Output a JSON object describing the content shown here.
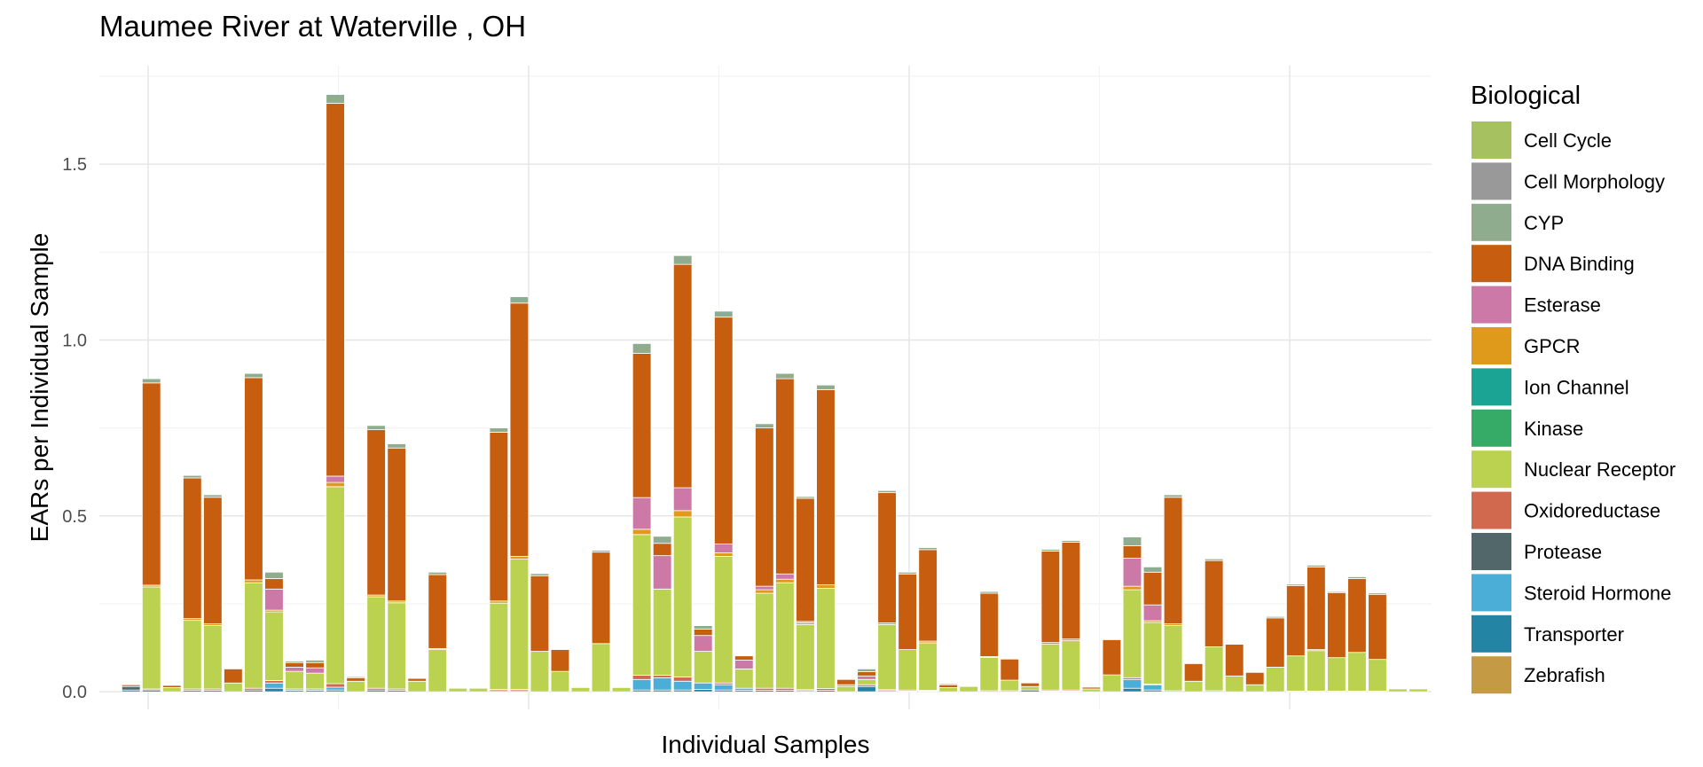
{
  "chart_data": {
    "type": "bar",
    "stacked": true,
    "title": "Maumee River at Waterville , OH",
    "xlabel": "Individual Samples",
    "ylabel": "EARs per Individual Sample",
    "ylim": [
      -0.05,
      1.78
    ],
    "yticks": [
      0.0,
      0.5,
      1.0,
      1.5
    ],
    "ytick_labels": [
      "0.0",
      "0.5",
      "1.0",
      "1.5"
    ],
    "grid": true,
    "legend_position": "right",
    "legend_title": "Biological",
    "series": [
      {
        "name": "Cell Cycle",
        "color": "#A6C15F"
      },
      {
        "name": "Cell Morphology",
        "color": "#999999"
      },
      {
        "name": "CYP",
        "color": "#8FAD8E"
      },
      {
        "name": "DNA Binding",
        "color": "#C75E0F"
      },
      {
        "name": "Esterase",
        "color": "#CC79A7"
      },
      {
        "name": "GPCR",
        "color": "#DF9A1B"
      },
      {
        "name": "Ion Channel",
        "color": "#1BA394"
      },
      {
        "name": "Kinase",
        "color": "#36AB67"
      },
      {
        "name": "Nuclear Receptor",
        "color": "#BAD24F"
      },
      {
        "name": "Oxidoreductase",
        "color": "#D1694E"
      },
      {
        "name": "Protease",
        "color": "#51676A"
      },
      {
        "name": "Steroid Hormone",
        "color": "#4BAED6"
      },
      {
        "name": "Transporter",
        "color": "#2484A3"
      },
      {
        "name": "Zebrafish",
        "color": "#C49A45"
      }
    ],
    "samples": [
      {
        "Protease": 0.01,
        "Transporter": 0.005,
        "Oxidoreductase": 0.005
      },
      {
        "Protease": 0.005,
        "Oxidoreductase": 0.003,
        "Nuclear Receptor": 0.29,
        "GPCR": 0.005,
        "DNA Binding": 0.575,
        "CYP": 0.012
      },
      {
        "Nuclear Receptor": 0.012,
        "DNA Binding": 0.006
      },
      {
        "Protease": 0.004,
        "Oxidoreductase": 0.004,
        "Nuclear Receptor": 0.195,
        "GPCR": 0.005,
        "DNA Binding": 0.4,
        "CYP": 0.007
      },
      {
        "Protease": 0.004,
        "Oxidoreductase": 0.004,
        "Nuclear Receptor": 0.18,
        "GPCR": 0.005,
        "DNA Binding": 0.36,
        "CYP": 0.007
      },
      {
        "Nuclear Receptor": 0.025,
        "DNA Binding": 0.04
      },
      {
        "Protease": 0.005,
        "Oxidoreductase": 0.005,
        "Nuclear Receptor": 0.3,
        "GPCR": 0.008,
        "DNA Binding": 0.575,
        "CYP": 0.012
      },
      {
        "Transporter": 0.01,
        "Steroid Hormone": 0.015,
        "Oxidoreductase": 0.007,
        "Nuclear Receptor": 0.195,
        "GPCR": 0.005,
        "Esterase": 0.06,
        "DNA Binding": 0.03,
        "CYP": 0.018
      },
      {
        "Transporter": 0.004,
        "Steroid Hormone": 0.004,
        "Nuclear Receptor": 0.05,
        "Esterase": 0.012,
        "DNA Binding": 0.013,
        "CYP": 0.004
      },
      {
        "Transporter": 0.004,
        "Steroid Hormone": 0.004,
        "Nuclear Receptor": 0.045,
        "Esterase": 0.015,
        "DNA Binding": 0.015,
        "CYP": 0.007
      },
      {
        "Transporter": 0.005,
        "Steroid Hormone": 0.008,
        "Oxidoreductase": 0.01,
        "Nuclear Receptor": 0.56,
        "GPCR": 0.012,
        "Esterase": 0.018,
        "DNA Binding": 1.06,
        "CYP": 0.025
      },
      {
        "Nuclear Receptor": 0.03,
        "DNA Binding": 0.01,
        "CYP": 0.003
      },
      {
        "Protease": 0.005,
        "Oxidoreductase": 0.005,
        "Nuclear Receptor": 0.26,
        "GPCR": 0.005,
        "DNA Binding": 0.47,
        "CYP": 0.012
      },
      {
        "Protease": 0.004,
        "Oxidoreductase": 0.004,
        "Nuclear Receptor": 0.245,
        "GPCR": 0.005,
        "DNA Binding": 0.435,
        "CYP": 0.012
      },
      {
        "Nuclear Receptor": 0.03,
        "DNA Binding": 0.008,
        "CYP": 0.002
      },
      {
        "Nuclear Receptor": 0.12,
        "GPCR": 0.003,
        "DNA Binding": 0.21,
        "CYP": 0.007
      },
      {
        "Nuclear Receptor": 0.01
      },
      {
        "Nuclear Receptor": 0.01
      },
      {
        "Protease": 0.003,
        "Oxidoreductase": 0.004,
        "Nuclear Receptor": 0.245,
        "GPCR": 0.006,
        "DNA Binding": 0.48,
        "CYP": 0.012
      },
      {
        "Protease": 0.003,
        "Oxidoreductase": 0.004,
        "Nuclear Receptor": 0.37,
        "GPCR": 0.008,
        "DNA Binding": 0.72,
        "CYP": 0.018
      },
      {
        "Nuclear Receptor": 0.115,
        "DNA Binding": 0.215,
        "CYP": 0.006
      },
      {
        "Nuclear Receptor": 0.058,
        "DNA Binding": 0.062
      },
      {
        "Nuclear Receptor": 0.012
      },
      {
        "Nuclear Receptor": 0.137,
        "DNA Binding": 0.26,
        "CYP": 0.005
      },
      {
        "Nuclear Receptor": 0.012
      },
      {
        "Transporter": 0.005,
        "Steroid Hormone": 0.03,
        "Oxidoreductase": 0.012,
        "Nuclear Receptor": 0.4,
        "GPCR": 0.015,
        "Esterase": 0.09,
        "DNA Binding": 0.41,
        "CYP": 0.028
      },
      {
        "Transporter": 0.005,
        "Steroid Hormone": 0.035,
        "Oxidoreductase": 0.007,
        "Nuclear Receptor": 0.245,
        "Esterase": 0.095,
        "DNA Binding": 0.035,
        "CYP": 0.02
      },
      {
        "Transporter": 0.005,
        "Steroid Hormone": 0.025,
        "Oxidoreductase": 0.012,
        "Nuclear Receptor": 0.455,
        "GPCR": 0.018,
        "Esterase": 0.065,
        "DNA Binding": 0.635,
        "CYP": 0.025
      },
      {
        "Transporter": 0.007,
        "Steroid Hormone": 0.018,
        "Nuclear Receptor": 0.09,
        "Esterase": 0.045,
        "DNA Binding": 0.018,
        "CYP": 0.01
      },
      {
        "Transporter": 0.005,
        "Steroid Hormone": 0.015,
        "Oxidoreductase": 0.005,
        "Nuclear Receptor": 0.36,
        "GPCR": 0.01,
        "Esterase": 0.025,
        "DNA Binding": 0.645,
        "CYP": 0.017
      },
      {
        "Transporter": 0.004,
        "Steroid Hormone": 0.006,
        "Nuclear Receptor": 0.055,
        "Esterase": 0.025,
        "DNA Binding": 0.012
      },
      {
        "Protease": 0.004,
        "Oxidoreductase": 0.006,
        "Nuclear Receptor": 0.27,
        "GPCR": 0.01,
        "Esterase": 0.01,
        "DNA Binding": 0.45,
        "CYP": 0.012
      },
      {
        "Protease": 0.004,
        "Oxidoreductase": 0.006,
        "Nuclear Receptor": 0.3,
        "GPCR": 0.01,
        "Esterase": 0.015,
        "DNA Binding": 0.555,
        "CYP": 0.015
      },
      {
        "Protease": 0.003,
        "Oxidoreductase": 0.003,
        "Nuclear Receptor": 0.185,
        "GPCR": 0.005,
        "Esterase": 0.004,
        "DNA Binding": 0.35,
        "CYP": 0.005
      },
      {
        "Protease": 0.004,
        "Oxidoreductase": 0.005,
        "Nuclear Receptor": 0.285,
        "GPCR": 0.01,
        "DNA Binding": 0.555,
        "CYP": 0.013
      },
      {
        "Nuclear Receptor": 0.015,
        "GPCR": 0.005,
        "DNA Binding": 0.015
      },
      {
        "Transporter": 0.015,
        "Oxidoreductase": 0.005,
        "Nuclear Receptor": 0.015,
        "Esterase": 0.01,
        "DNA Binding": 0.012,
        "CYP": 0.008
      },
      {
        "Protease": 0.003,
        "Oxidoreductase": 0.003,
        "Nuclear Receptor": 0.185,
        "GPCR": 0.005,
        "DNA Binding": 0.37,
        "CYP": 0.006
      },
      {
        "Protease": 0.002,
        "Oxidoreductase": 0.003,
        "Nuclear Receptor": 0.115,
        "DNA Binding": 0.215,
        "CYP": 0.005
      },
      {
        "Protease": 0.002,
        "Oxidoreductase": 0.002,
        "Nuclear Receptor": 0.135,
        "GPCR": 0.005,
        "DNA Binding": 0.26,
        "CYP": 0.006
      },
      {
        "Nuclear Receptor": 0.012,
        "DNA Binding": 0.008,
        "CYP": 0.003
      },
      {
        "Nuclear Receptor": 0.015
      },
      {
        "Oxidoreductase": 0.003,
        "Nuclear Receptor": 0.095,
        "GPCR": 0.002,
        "DNA Binding": 0.18,
        "CYP": 0.005
      },
      {
        "Oxidoreductase": 0.003,
        "Nuclear Receptor": 0.03,
        "DNA Binding": 0.06
      },
      {
        "Protease": 0.005,
        "Nuclear Receptor": 0.01,
        "DNA Binding": 0.01
      },
      {
        "Protease": 0.002,
        "Oxidoreductase": 0.003,
        "Nuclear Receptor": 0.13,
        "GPCR": 0.005,
        "DNA Binding": 0.26,
        "CYP": 0.005
      },
      {
        "Protease": 0.002,
        "Oxidoreductase": 0.003,
        "Nuclear Receptor": 0.14,
        "GPCR": 0.005,
        "DNA Binding": 0.275,
        "CYP": 0.005
      },
      {
        "Nuclear Receptor": 0.008,
        "DNA Binding": 0.005
      },
      {
        "Nuclear Receptor": 0.048,
        "DNA Binding": 0.1
      },
      {
        "Transporter": 0.01,
        "Steroid Hormone": 0.025,
        "Oxidoreductase": 0.005,
        "Nuclear Receptor": 0.25,
        "GPCR": 0.01,
        "Esterase": 0.08,
        "DNA Binding": 0.035,
        "CYP": 0.025
      },
      {
        "Transporter": 0.005,
        "Steroid Hormone": 0.015,
        "Oxidoreductase": 0.002,
        "Nuclear Receptor": 0.175,
        "GPCR": 0.005,
        "Esterase": 0.045,
        "DNA Binding": 0.093,
        "CYP": 0.015
      },
      {
        "Oxidoreductase": 0.003,
        "Nuclear Receptor": 0.185,
        "GPCR": 0.005,
        "DNA Binding": 0.36,
        "CYP": 0.007
      },
      {
        "Nuclear Receptor": 0.03,
        "DNA Binding": 0.05
      },
      {
        "Oxidoreductase": 0.003,
        "Nuclear Receptor": 0.125,
        "DNA Binding": 0.245,
        "CYP": 0.005
      },
      {
        "Nuclear Receptor": 0.045,
        "DNA Binding": 0.09
      },
      {
        "Nuclear Receptor": 0.02,
        "DNA Binding": 0.035
      },
      {
        "Nuclear Receptor": 0.07,
        "DNA Binding": 0.14,
        "CYP": 0.004
      },
      {
        "Oxidoreductase": 0.002,
        "Nuclear Receptor": 0.1,
        "DNA Binding": 0.2,
        "CYP": 0.004
      },
      {
        "Oxidoreductase": 0.002,
        "Nuclear Receptor": 0.115,
        "GPCR": 0.003,
        "DNA Binding": 0.235,
        "CYP": 0.005
      },
      {
        "Oxidoreductase": 0.002,
        "Nuclear Receptor": 0.095,
        "DNA Binding": 0.185,
        "CYP": 0.003
      },
      {
        "Oxidoreductase": 0.002,
        "Nuclear Receptor": 0.11,
        "DNA Binding": 0.21,
        "CYP": 0.005
      },
      {
        "Oxidoreductase": 0.002,
        "Nuclear Receptor": 0.09,
        "DNA Binding": 0.185,
        "CYP": 0.004
      },
      {
        "Nuclear Receptor": 0.008
      },
      {
        "Nuclear Receptor": 0.008
      }
    ]
  }
}
